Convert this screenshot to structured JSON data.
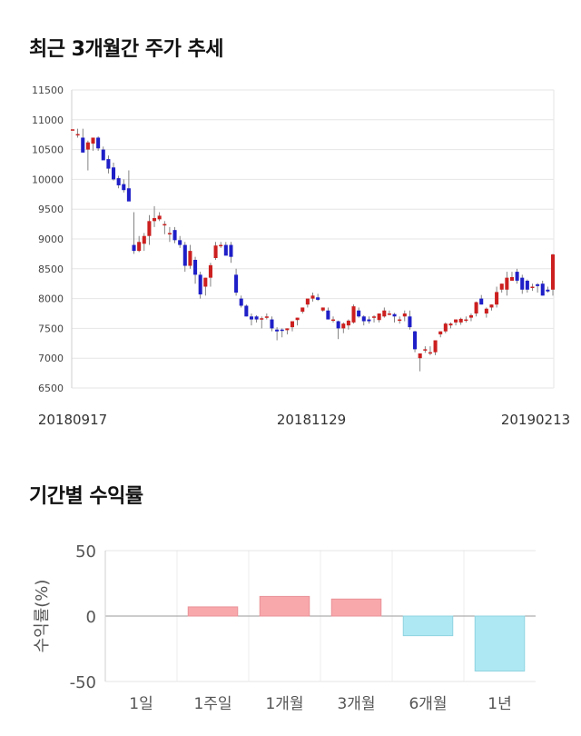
{
  "section_1": {
    "title": "최근 3개월간 주가 추세"
  },
  "section_2": {
    "title": "기간별 수익률"
  },
  "colors": {
    "up": "#cc1f1f",
    "down": "#1f1fc8",
    "bar_positive": "#f8a8ab",
    "bar_negative": "#aee8f3",
    "grid": "#e6e6e6"
  },
  "chart_data": [
    {
      "type": "candlestick",
      "ylim": [
        6500,
        11500
      ],
      "yticks": [
        6500,
        7000,
        7500,
        8000,
        8500,
        9000,
        9500,
        10000,
        10500,
        11000,
        11500
      ],
      "x_labels": [
        "20180917",
        "20181129",
        "20190213"
      ],
      "grid": true,
      "candles": [
        [
          10840,
          10840,
          10840,
          10840
        ],
        [
          10760,
          10850,
          10700,
          10760
        ],
        [
          10700,
          10850,
          10450,
          10450
        ],
        [
          10500,
          10650,
          10150,
          10620
        ],
        [
          10600,
          10650,
          10480,
          10700
        ],
        [
          10700,
          10720,
          10480,
          10520
        ],
        [
          10500,
          10550,
          10350,
          10320
        ],
        [
          10340,
          10400,
          10100,
          10180
        ],
        [
          10200,
          10280,
          9980,
          10000
        ],
        [
          10020,
          10060,
          9850,
          9900
        ],
        [
          9920,
          10000,
          9780,
          9820
        ],
        [
          9850,
          10150,
          9650,
          9630
        ],
        [
          8900,
          9450,
          8750,
          8800
        ],
        [
          8800,
          9050,
          8780,
          8950
        ],
        [
          8920,
          9100,
          8800,
          9050
        ],
        [
          9050,
          9400,
          8900,
          9300
        ],
        [
          9300,
          9550,
          9200,
          9350
        ],
        [
          9330,
          9450,
          9300,
          9390
        ],
        [
          9250,
          9300,
          9080,
          9250
        ],
        [
          9080,
          9200,
          8950,
          9100
        ],
        [
          9150,
          9200,
          8930,
          8980
        ],
        [
          8980,
          9050,
          8850,
          8900
        ],
        [
          8900,
          8950,
          8450,
          8550
        ],
        [
          8550,
          8900,
          8500,
          8800
        ],
        [
          8650,
          8700,
          8250,
          8400
        ],
        [
          8400,
          8450,
          8000,
          8070
        ],
        [
          8200,
          8350,
          8050,
          8350
        ],
        [
          8350,
          8600,
          8200,
          8560
        ],
        [
          8680,
          8950,
          8650,
          8890
        ],
        [
          8900,
          8950,
          8850,
          8900
        ],
        [
          8900,
          8950,
          8730,
          8720
        ],
        [
          8900,
          8950,
          8600,
          8700
        ],
        [
          8400,
          8500,
          8050,
          8100
        ],
        [
          8000,
          8050,
          7850,
          7880
        ],
        [
          7880,
          7900,
          7700,
          7700
        ],
        [
          7700,
          7750,
          7550,
          7650
        ],
        [
          7700,
          7720,
          7600,
          7650
        ],
        [
          7660,
          7700,
          7500,
          7670
        ],
        [
          7690,
          7750,
          7650,
          7700
        ],
        [
          7650,
          7700,
          7450,
          7500
        ],
        [
          7480,
          7520,
          7300,
          7450
        ],
        [
          7480,
          7500,
          7350,
          7460
        ],
        [
          7470,
          7500,
          7400,
          7500
        ],
        [
          7520,
          7600,
          7450,
          7620
        ],
        [
          7640,
          7680,
          7550,
          7680
        ],
        [
          7780,
          7850,
          7750,
          7850
        ],
        [
          7900,
          7950,
          7850,
          8000
        ],
        [
          8000,
          8100,
          7950,
          8050
        ],
        [
          8020,
          8080,
          7960,
          7980
        ],
        [
          7800,
          7850,
          7780,
          7850
        ],
        [
          7800,
          7850,
          7650,
          7650
        ],
        [
          7650,
          7700,
          7600,
          7650
        ],
        [
          7620,
          7630,
          7320,
          7500
        ],
        [
          7500,
          7600,
          7420,
          7580
        ],
        [
          7550,
          7650,
          7480,
          7630
        ],
        [
          7600,
          7900,
          7580,
          7870
        ],
        [
          7800,
          7850,
          7680,
          7700
        ],
        [
          7700,
          7720,
          7550,
          7620
        ],
        [
          7650,
          7700,
          7580,
          7620
        ],
        [
          7680,
          7720,
          7600,
          7700
        ],
        [
          7640,
          7750,
          7600,
          7750
        ],
        [
          7700,
          7850,
          7680,
          7800
        ],
        [
          7750,
          7800,
          7720,
          7750
        ],
        [
          7740,
          7760,
          7600,
          7700
        ],
        [
          7650,
          7700,
          7580,
          7650
        ],
        [
          7700,
          7800,
          7620,
          7750
        ],
        [
          7700,
          7800,
          7480,
          7520
        ],
        [
          7450,
          7460,
          7100,
          7150
        ],
        [
          7000,
          7050,
          6780,
          7080
        ],
        [
          7150,
          7200,
          7090,
          7150
        ],
        [
          7100,
          7200,
          7050,
          7100
        ],
        [
          7100,
          7300,
          7050,
          7300
        ],
        [
          7400,
          7450,
          7350,
          7450
        ],
        [
          7450,
          7600,
          7420,
          7580
        ],
        [
          7550,
          7600,
          7500,
          7580
        ],
        [
          7600,
          7650,
          7550,
          7650
        ],
        [
          7600,
          7680,
          7560,
          7660
        ],
        [
          7650,
          7700,
          7600,
          7650
        ],
        [
          7680,
          7750,
          7620,
          7720
        ],
        [
          7750,
          7950,
          7700,
          7940
        ],
        [
          8000,
          8060,
          7900,
          7900
        ],
        [
          7750,
          7850,
          7680,
          7830
        ],
        [
          7850,
          7900,
          7800,
          7900
        ],
        [
          7900,
          8200,
          7850,
          8110
        ],
        [
          8150,
          8250,
          8100,
          8250
        ],
        [
          8150,
          8450,
          8050,
          8350
        ],
        [
          8300,
          8450,
          8300,
          8360
        ],
        [
          8450,
          8500,
          8250,
          8300
        ],
        [
          8350,
          8400,
          8080,
          8150
        ],
        [
          8300,
          8320,
          8100,
          8150
        ],
        [
          8200,
          8250,
          8130,
          8200
        ],
        [
          8240,
          8260,
          8100,
          8210
        ],
        [
          8250,
          8300,
          8050,
          8050
        ],
        [
          8150,
          8200,
          8100,
          8120
        ],
        [
          8150,
          8750,
          8050,
          8740
        ]
      ]
    },
    {
      "type": "bar",
      "ylabel": "수익률(%)",
      "ylim": [
        -50,
        50
      ],
      "yticks": [
        50,
        0,
        -50
      ],
      "categories": [
        "1일",
        "1주일",
        "1개월",
        "3개월",
        "6개월",
        "1년"
      ],
      "values": [
        0,
        7,
        15,
        13,
        -15,
        -42
      ]
    }
  ]
}
